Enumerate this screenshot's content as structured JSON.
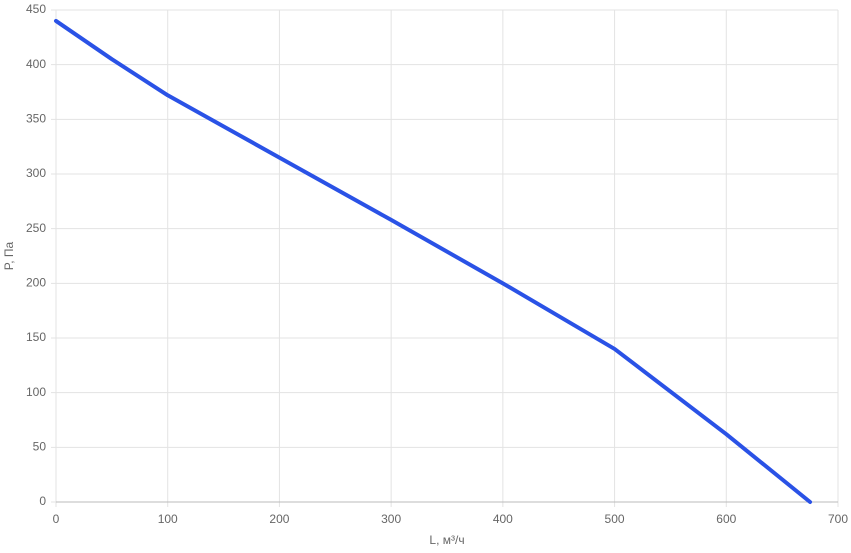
{
  "chart_data": {
    "type": "line",
    "x_label": "L, м³/ч",
    "y_label": "P, Па",
    "x": [
      0,
      50,
      100,
      200,
      300,
      400,
      500,
      600,
      675
    ],
    "series": [
      {
        "name": "P",
        "color": "#2a52e6",
        "values": [
          440,
          405,
          372,
          315,
          258,
          200,
          140,
          62,
          0
        ]
      }
    ],
    "xlim": [
      0,
      700
    ],
    "xticks": [
      0,
      100,
      200,
      300,
      400,
      500,
      600,
      700
    ],
    "ylim": [
      0,
      450
    ],
    "yticks": [
      0,
      50,
      100,
      150,
      200,
      250,
      300,
      350,
      400,
      450
    ],
    "grid": true
  }
}
